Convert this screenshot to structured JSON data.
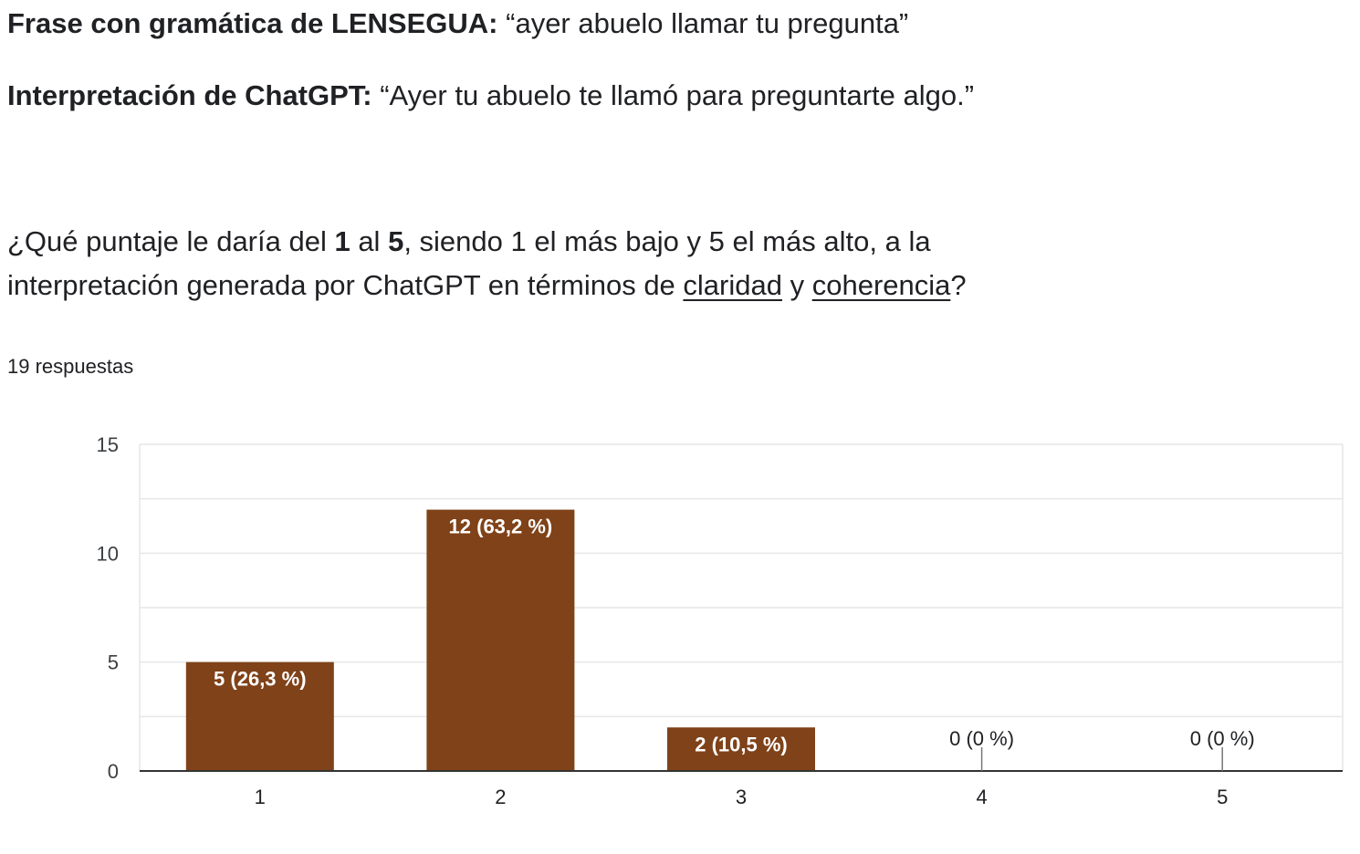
{
  "header": {
    "phrase_label": "Frase con gramática de LENSEGUA:",
    "phrase_value": "“ayer abuelo llamar tu pregunta”",
    "interp_label": "Interpretación de ChatGPT:",
    "interp_value": "“Ayer tu abuelo te llamó para preguntarte algo.”"
  },
  "question": {
    "part1": "¿Qué puntaje le daría del ",
    "num1": "1",
    "part2": " al ",
    "num2": "5",
    "part3": ", siendo 1 el más bajo y 5 el más alto, a la",
    "part4": "interpretación generada por ChatGPT en términos de ",
    "word1": "claridad",
    "part5": " y ",
    "word2": "coherencia",
    "part6": "?"
  },
  "responses_label": "19 respuestas",
  "colors": {
    "bar": "#7f4219",
    "grid": "#e6e6e6",
    "axis": "#333333",
    "bar_label_inside": "#ffffff",
    "bar_label_outside": "#202124"
  },
  "chart_data": {
    "type": "bar",
    "categories": [
      "1",
      "2",
      "3",
      "4",
      "5"
    ],
    "values": [
      5,
      12,
      2,
      0,
      0
    ],
    "bar_labels": [
      "5 (26,3 %)",
      "12 (63,2 %)",
      "2 (10,5 %)",
      "0 (0 %)",
      "0 (0 %)"
    ],
    "ylim": [
      0,
      15
    ],
    "yticks": [
      "0",
      "5",
      "10",
      "15"
    ],
    "grid": true,
    "legend": "none"
  }
}
